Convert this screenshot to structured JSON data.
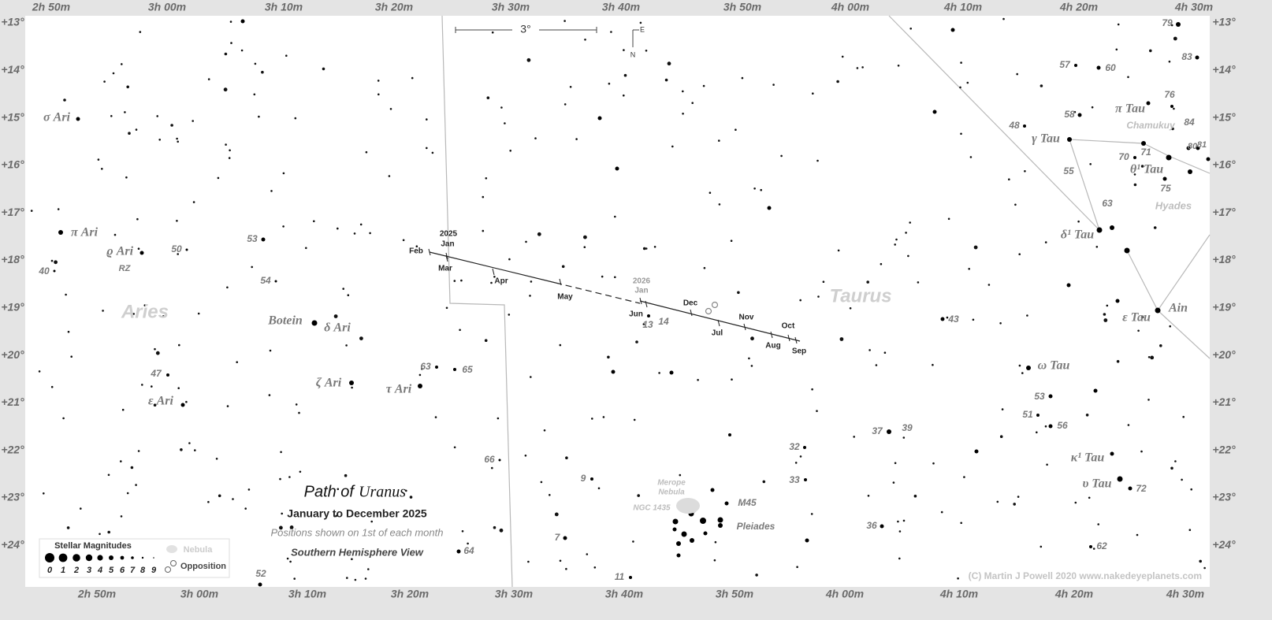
{
  "ra_labels_top": [
    "2h 50m",
    "3h 00m",
    "3h 10m",
    "3h 20m",
    "3h 30m",
    "3h 40m",
    "3h 50m",
    "4h 00m",
    "4h 10m",
    "4h 20m",
    "4h 30m"
  ],
  "ra_labels_bottom": [
    "2h 50m",
    "3h 00m",
    "3h 10m",
    "3h 20m",
    "3h 30m",
    "3h 40m",
    "3h 50m",
    "4h 00m",
    "4h 10m",
    "4h 20m",
    "4h 30m"
  ],
  "dec_labels": [
    "+13°",
    "+14°",
    "+15°",
    "+16°",
    "+17°",
    "+18°",
    "+19°",
    "+20°",
    "+21°",
    "+22°",
    "+23°",
    "+24°"
  ],
  "constellations": [
    "Aries",
    "Taurus"
  ],
  "star_labels": [
    "σ Ari",
    "π Ari",
    "ϱ Ari",
    "RZ",
    "50",
    "40",
    "53",
    "54",
    "Botein",
    "δ Ari",
    "47",
    "ε Ari",
    "ζ Ari",
    "τ Ari",
    "63",
    "65",
    "66",
    "64",
    "52",
    "9",
    "7",
    "11",
    "13",
    "14",
    "32",
    "33",
    "36",
    "37",
    "39",
    "43",
    "M45",
    "Pleiades",
    "Merope",
    "Nebula",
    "NGC 1435",
    "79",
    "83",
    "57",
    "60",
    "76",
    "π Tau",
    "58",
    "84",
    "Chamukuy",
    "48",
    "γ Tau",
    "80",
    "81",
    "70",
    "71",
    "θ¹ Tau",
    "55",
    "75",
    "63",
    "Hyades",
    "δ¹ Tau",
    "ε Tau",
    "Ain",
    "ω Tau",
    "53",
    "51",
    "56",
    "κ¹ Tau",
    "υ Tau",
    "72",
    "62"
  ],
  "path": {
    "year_labels": [
      "2025",
      "2026"
    ],
    "months": [
      "Jan",
      "Feb",
      "Mar",
      "Apr",
      "May",
      "Jun",
      "Jul",
      "Aug",
      "Sep",
      "Oct",
      "Nov",
      "Dec",
      "Jan"
    ]
  },
  "title": {
    "prefix": "Path of",
    "planet": "Uranus",
    "period": "January to December 2025",
    "note": "Positions shown on 1st of each month",
    "view": "Southern Hemisphere View"
  },
  "legend": {
    "title": "Stellar Magnitudes",
    "magnitudes": [
      0,
      1,
      2,
      3,
      4,
      5,
      6,
      7,
      8,
      9
    ],
    "nebula": "Nebula",
    "opposition": "Opposition"
  },
  "scale": {
    "label": "3°",
    "east": "E",
    "north": "N"
  },
  "credit": "(C) Martin J Powell  2020  www.nakedeyeplanets.com"
}
